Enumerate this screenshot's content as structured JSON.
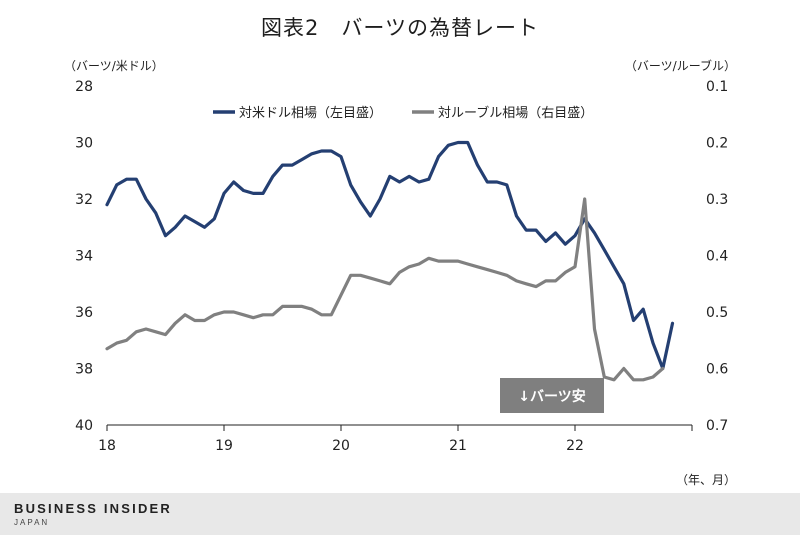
{
  "title": "図表2　バーツの為替レート",
  "footer": {
    "brand": "BUSINESS INSIDER",
    "brand_sub": "JAPAN"
  },
  "badge": "↓バーツ安",
  "chart_data": {
    "type": "line",
    "xlabel": "（年、月）",
    "x_ticks": [
      "18",
      "19",
      "20",
      "21",
      "22"
    ],
    "x_range": [
      2018.0,
      2023.0
    ],
    "left_axis": {
      "label": "（バーツ/米ドル）",
      "ylim": [
        28,
        40
      ],
      "inverted": true,
      "ticks": [
        "28",
        "30",
        "32",
        "34",
        "36",
        "38",
        "40"
      ]
    },
    "right_axis": {
      "label": "（バーツ/ルーブル）",
      "ylim": [
        0.1,
        0.7
      ],
      "inverted": true,
      "ticks": [
        "0.1",
        "0.2",
        "0.3",
        "0.4",
        "0.5",
        "0.6",
        "0.7"
      ]
    },
    "legend": "top",
    "colors": {
      "usd": "#243f72",
      "rub": "#808080",
      "badge": "#7f7f7f"
    },
    "series": [
      {
        "name": "対米ドル相場（左目盛）",
        "axis": "left",
        "x": [
          2018.0,
          2018.083,
          2018.167,
          2018.25,
          2018.333,
          2018.417,
          2018.5,
          2018.583,
          2018.667,
          2018.75,
          2018.833,
          2018.917,
          2019.0,
          2019.083,
          2019.167,
          2019.25,
          2019.333,
          2019.417,
          2019.5,
          2019.583,
          2019.667,
          2019.75,
          2019.833,
          2019.917,
          2020.0,
          2020.083,
          2020.167,
          2020.25,
          2020.333,
          2020.417,
          2020.5,
          2020.583,
          2020.667,
          2020.75,
          2020.833,
          2020.917,
          2021.0,
          2021.083,
          2021.167,
          2021.25,
          2021.333,
          2021.417,
          2021.5,
          2021.583,
          2021.667,
          2021.75,
          2021.833,
          2021.917,
          2022.0,
          2022.083,
          2022.167,
          2022.25,
          2022.333,
          2022.417,
          2022.5,
          2022.583,
          2022.667,
          2022.75,
          2022.833,
          2022.917
        ],
        "values": [
          32.2,
          31.5,
          31.3,
          31.3,
          32.0,
          32.5,
          33.3,
          33.0,
          32.6,
          32.8,
          33.0,
          32.7,
          31.8,
          31.4,
          31.7,
          31.8,
          31.8,
          31.2,
          30.8,
          30.8,
          30.6,
          30.4,
          30.3,
          30.3,
          30.5,
          31.5,
          32.1,
          32.6,
          32.0,
          31.2,
          31.4,
          31.2,
          31.4,
          31.3,
          30.5,
          30.1,
          30.0,
          30.0,
          30.8,
          31.4,
          31.4,
          31.5,
          32.6,
          33.1,
          33.1,
          33.5,
          33.2,
          33.6,
          33.3,
          32.7,
          33.2,
          33.8,
          34.4,
          35.0,
          36.3,
          35.9,
          37.1,
          38.0,
          36.4,
          null
        ]
      },
      {
        "name": "対ルーブル相場（右目盛）",
        "axis": "right",
        "x": [
          2018.0,
          2018.083,
          2018.167,
          2018.25,
          2018.333,
          2018.417,
          2018.5,
          2018.583,
          2018.667,
          2018.75,
          2018.833,
          2018.917,
          2019.0,
          2019.083,
          2019.167,
          2019.25,
          2019.333,
          2019.417,
          2019.5,
          2019.583,
          2019.667,
          2019.75,
          2019.833,
          2019.917,
          2020.0,
          2020.083,
          2020.167,
          2020.25,
          2020.333,
          2020.417,
          2020.5,
          2020.583,
          2020.667,
          2020.75,
          2020.833,
          2020.917,
          2021.0,
          2021.083,
          2021.167,
          2021.25,
          2021.333,
          2021.417,
          2021.5,
          2021.583,
          2021.667,
          2021.75,
          2021.833,
          2021.917,
          2022.0,
          2022.083,
          2022.167,
          2022.25,
          2022.333,
          2022.417,
          2022.5,
          2022.583,
          2022.667,
          2022.75,
          2022.833,
          2022.917
        ],
        "values": [
          0.565,
          0.555,
          0.55,
          0.535,
          0.53,
          0.535,
          0.54,
          0.52,
          0.505,
          0.515,
          0.515,
          0.505,
          0.5,
          0.5,
          0.505,
          0.51,
          0.505,
          0.505,
          0.49,
          0.49,
          0.49,
          0.495,
          0.505,
          0.505,
          0.47,
          0.435,
          0.435,
          0.44,
          0.445,
          0.45,
          0.43,
          0.42,
          0.415,
          0.405,
          0.41,
          0.41,
          0.41,
          0.415,
          0.42,
          0.425,
          0.43,
          0.435,
          0.445,
          0.45,
          0.455,
          0.445,
          0.445,
          0.43,
          0.42,
          0.3,
          0.53,
          0.615,
          0.62,
          0.6,
          0.62,
          0.62,
          0.615,
          0.6,
          null,
          null
        ]
      }
    ]
  }
}
